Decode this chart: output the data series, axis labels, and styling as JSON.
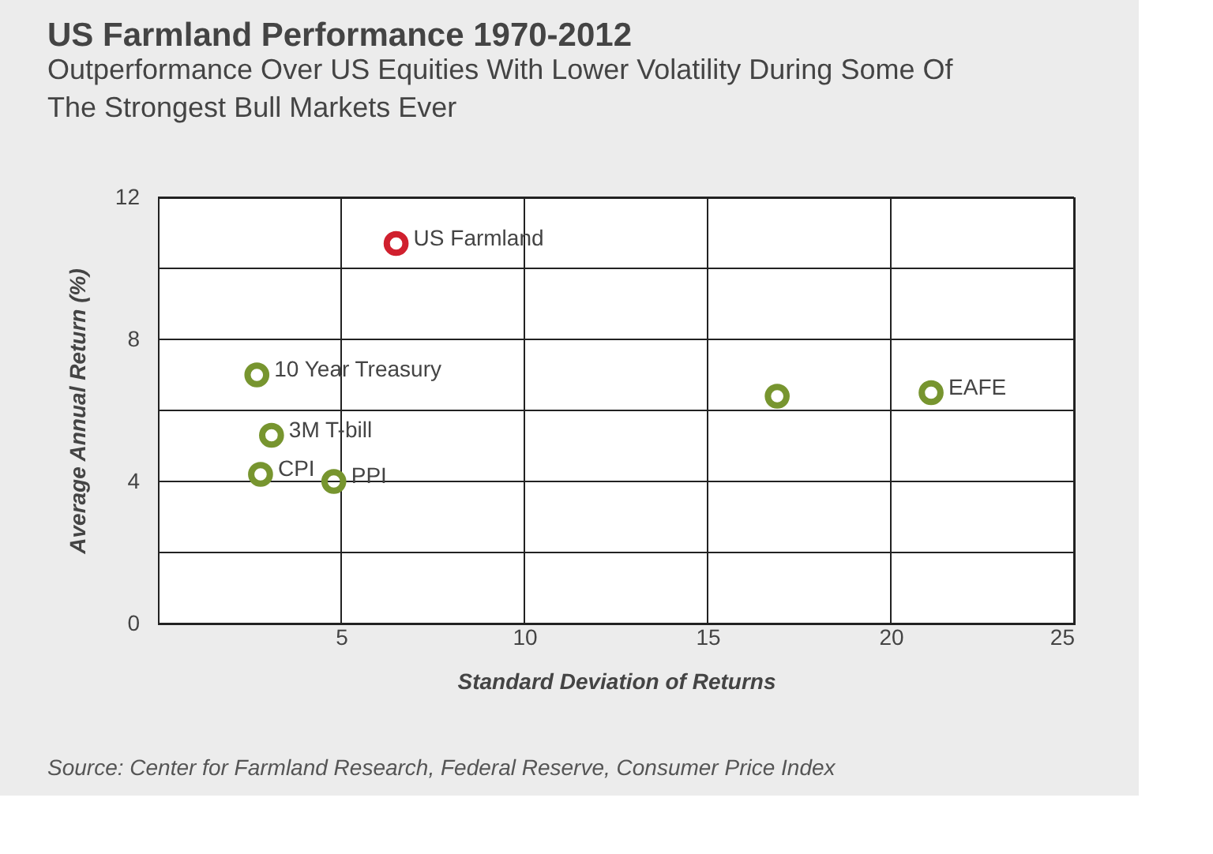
{
  "chart_data": {
    "type": "scatter",
    "title": "US Farmland Performance 1970-2012",
    "subtitle": "Outperformance Over US Equities With Lower Volatility During Some Of The Strongest Bull Markets Ever",
    "xlabel": "Standard Deviation of Returns",
    "ylabel": "Average Annual Return (%)",
    "x": [
      6.5,
      2.7,
      3.1,
      2.8,
      4.8,
      16.9,
      21.1
    ],
    "values": [
      10.7,
      7.0,
      5.3,
      4.2,
      4.0,
      6.4,
      6.5
    ],
    "colors": [
      "#d0202e",
      "#77952f",
      "#77952f",
      "#77952f",
      "#77952f",
      "#77952f",
      "#77952f"
    ],
    "xlim": [
      0,
      25
    ],
    "xticks": [
      5,
      10,
      15,
      20,
      25
    ],
    "ylim": [
      0,
      12
    ],
    "yticks": [
      0,
      {
        "value": 2,
        "label": null
      },
      4,
      {
        "value": 6,
        "label": null
      },
      8,
      {
        "value": 10,
        "label": null
      },
      12
    ],
    "grid": true,
    "marker": "circle",
    "annotations": [
      {
        "text": "US Farmland",
        "x": 6.5,
        "y": 10.7
      },
      {
        "text": "10 Year Treasury",
        "x": 2.7,
        "y": 7.0
      },
      {
        "text": "3M T-bill",
        "x": 3.1,
        "y": 5.3
      },
      {
        "text": "CPI",
        "x": 2.8,
        "y": 4.2
      },
      {
        "text": "PPI",
        "x": 4.8,
        "y": 4.0
      },
      {
        "text": "EAFE",
        "x": 21.1,
        "y": 6.5
      },
      "Source: Center for Farmland Research, Federal Reserve, Consumer Price Index"
    ]
  }
}
